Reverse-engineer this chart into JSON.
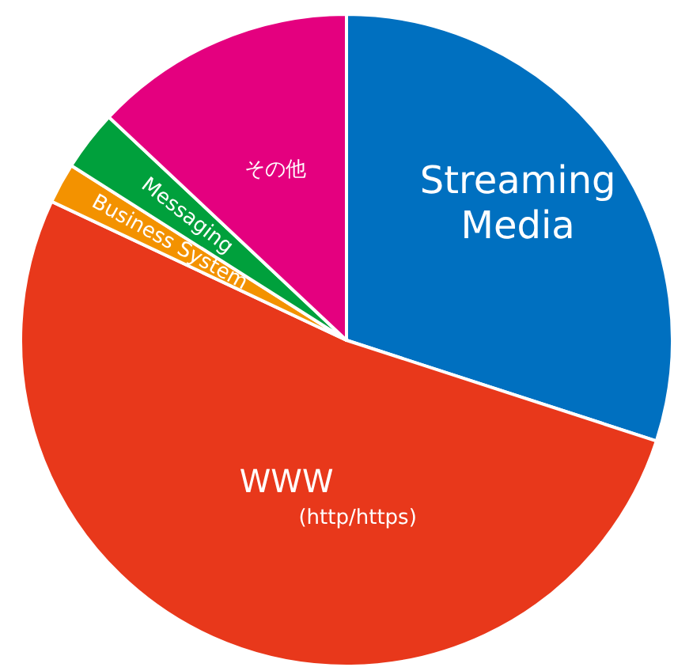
{
  "chart_data": {
    "type": "pie",
    "categories": [
      "Streaming Media",
      "WWW",
      "Business System",
      "Messaging",
      "その他"
    ],
    "values": [
      30,
      52,
      2,
      3,
      13
    ],
    "colors": [
      "#0070c0",
      "#e8381b",
      "#f39200",
      "#00a03c",
      "#e4007f"
    ],
    "annotations": [
      "(http/https)"
    ],
    "legend": false
  }
}
